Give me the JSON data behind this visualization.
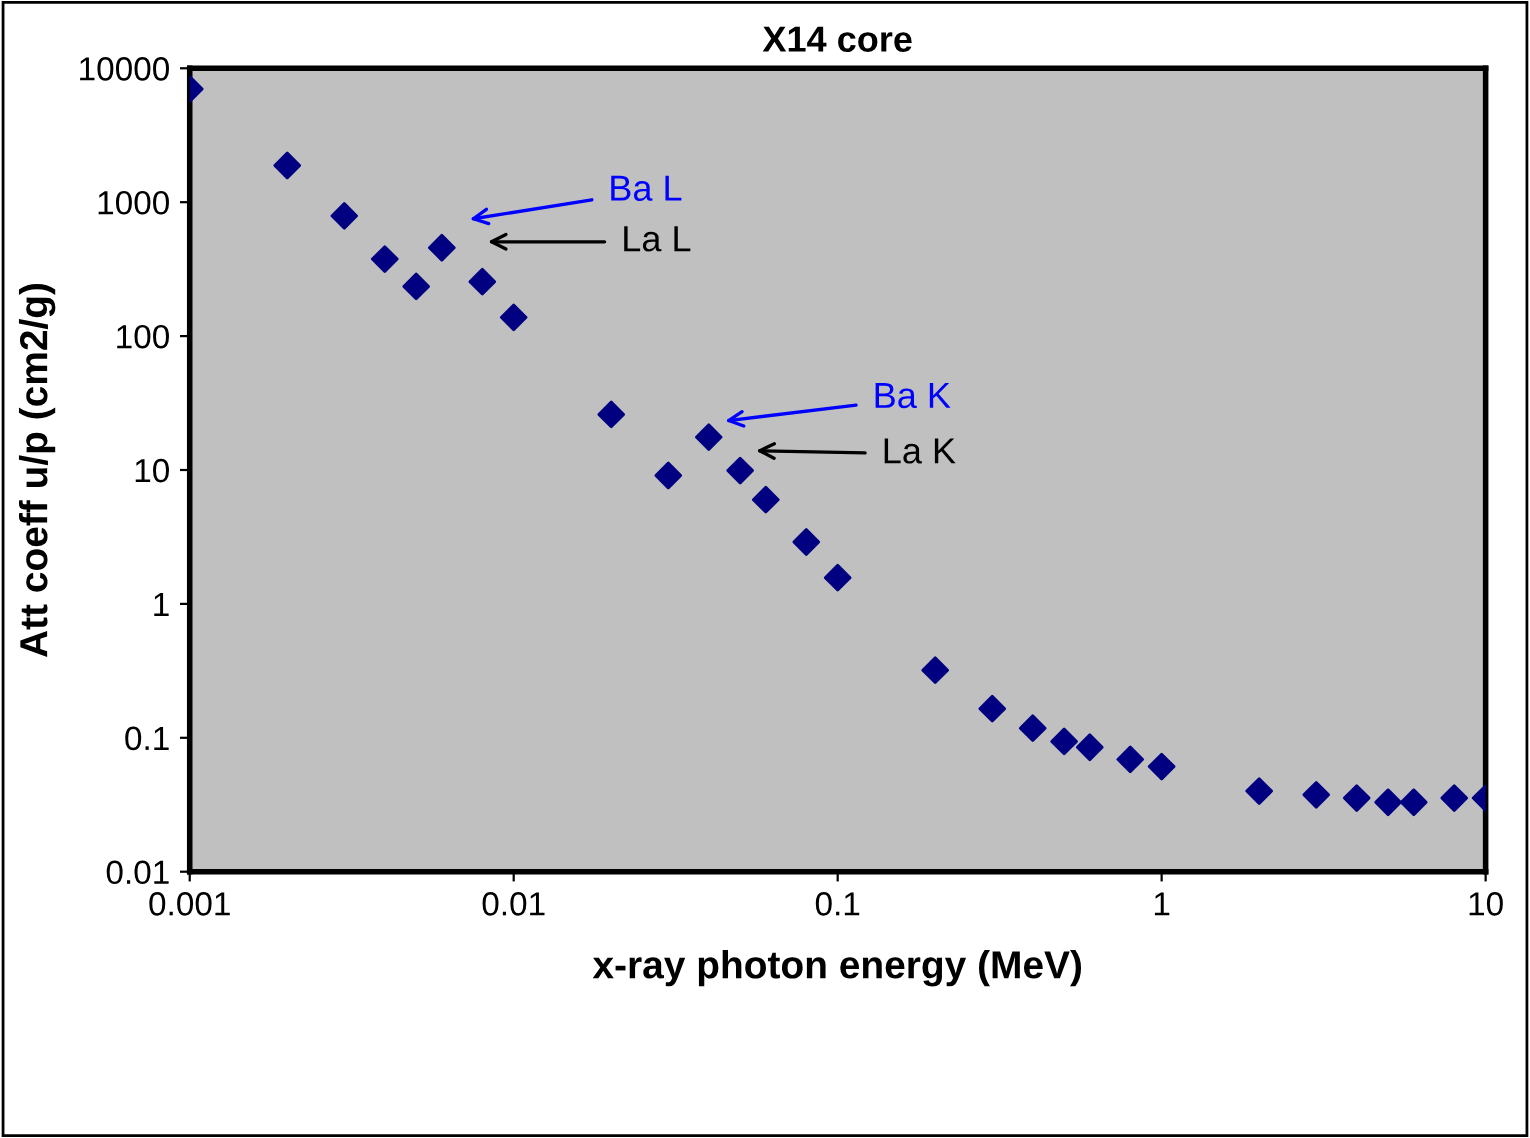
{
  "chart_data": {
    "type": "scatter",
    "title": "X14 core",
    "xlabel": "x-ray photon energy (MeV)",
    "ylabel": "Att coeff u/p (cm2/g)",
    "log": "xy",
    "marker": "diamond",
    "grid": false,
    "x": [
      0.001,
      0.002,
      0.003,
      0.004,
      0.005,
      0.006,
      0.008,
      0.01,
      0.02,
      0.03,
      0.04,
      0.05,
      0.06,
      0.08,
      0.1,
      0.2,
      0.3,
      0.4,
      0.5,
      0.6,
      0.8,
      1,
      2,
      3,
      4,
      5,
      6,
      8,
      10
    ],
    "series": [
      {
        "color": "#000080",
        "values": [
          7000,
          1880,
          790,
          376,
          235,
          457,
          255,
          138,
          26,
          9.1,
          17.6,
          9.9,
          6.0,
          2.9,
          1.57,
          0.32,
          0.165,
          0.118,
          0.094,
          0.085,
          0.069,
          0.061,
          0.04,
          0.0375,
          0.0355,
          0.033,
          0.033,
          0.0355,
          0.0355
        ]
      }
    ],
    "xlim": [
      0.001,
      10
    ],
    "xticks": [
      0.001,
      0.01,
      0.1,
      1,
      10
    ],
    "ylim": [
      0.01,
      10000
    ],
    "yticks": [
      0.01,
      0.1,
      1,
      10,
      100,
      1000,
      10000
    ],
    "annotations": [
      "Ba L",
      "La L",
      "Ba K",
      "La K"
    ]
  }
}
